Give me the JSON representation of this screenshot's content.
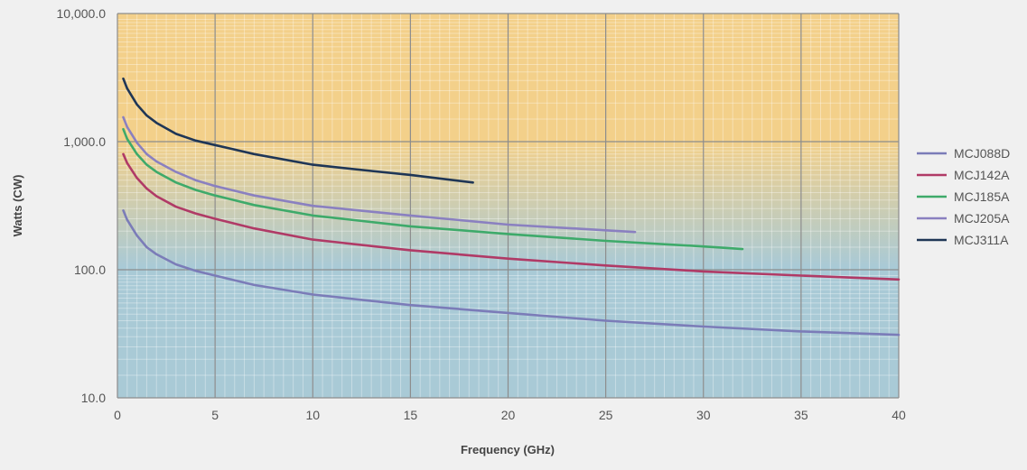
{
  "chart_data": {
    "type": "line",
    "xlabel": "Frequency (GHz)",
    "ylabel": "Watts (CW)",
    "xlim": [
      0,
      40
    ],
    "ylim": [
      10,
      10000
    ],
    "y_scale": "log",
    "x_ticks": [
      0,
      5,
      10,
      15,
      20,
      25,
      30,
      35,
      40
    ],
    "x_tick_labels": [
      "0",
      "5",
      "10",
      "15",
      "20",
      "25",
      "30",
      "35",
      "40"
    ],
    "y_ticks": [
      10,
      100,
      1000,
      10000
    ],
    "y_tick_labels": [
      "10.0",
      "100.0",
      "1,000.0",
      "10,000.0"
    ],
    "grid": true,
    "legend_position": "right",
    "background": {
      "upper": "#f3d08a",
      "lower": "#a9cad6"
    },
    "series": [
      {
        "name": "MCJ088D",
        "color": "#7b7cb8",
        "x": [
          0.3,
          0.5,
          1,
          1.5,
          2,
          3,
          4,
          5,
          7,
          10,
          15,
          20,
          25,
          30,
          35,
          40
        ],
        "y": [
          290,
          245,
          185,
          150,
          132,
          110,
          98,
          90,
          76,
          64,
          53,
          46,
          40,
          36,
          33,
          31
        ]
      },
      {
        "name": "MCJ142A",
        "color": "#b03a66",
        "x": [
          0.3,
          0.5,
          1,
          1.5,
          2,
          3,
          4,
          5,
          7,
          10,
          15,
          20,
          25,
          30,
          35,
          40
        ],
        "y": [
          800,
          680,
          520,
          430,
          375,
          310,
          275,
          250,
          210,
          172,
          142,
          122,
          108,
          97,
          90,
          84
        ]
      },
      {
        "name": "MCJ185A",
        "color": "#3eaa6a",
        "x": [
          0.3,
          0.5,
          1,
          1.5,
          2,
          3,
          4,
          5,
          7,
          10,
          15,
          20,
          25,
          30,
          32
        ],
        "y": [
          1250,
          1050,
          800,
          660,
          580,
          480,
          420,
          380,
          320,
          265,
          218,
          190,
          168,
          152,
          145
        ]
      },
      {
        "name": "MCJ205A",
        "color": "#8a80c0",
        "x": [
          0.3,
          0.5,
          1,
          1.5,
          2,
          3,
          4,
          5,
          7,
          10,
          15,
          20,
          25,
          26.5
        ],
        "y": [
          1550,
          1300,
          980,
          800,
          700,
          580,
          500,
          450,
          380,
          315,
          265,
          225,
          203,
          197
        ]
      },
      {
        "name": "MCJ311A",
        "color": "#1f3656",
        "x": [
          0.3,
          0.5,
          1,
          1.5,
          2,
          3,
          4,
          5,
          7,
          10,
          13,
          15,
          18.2
        ],
        "y": [
          3100,
          2600,
          1950,
          1600,
          1400,
          1150,
          1020,
          940,
          800,
          660,
          590,
          550,
          480
        ]
      }
    ]
  }
}
